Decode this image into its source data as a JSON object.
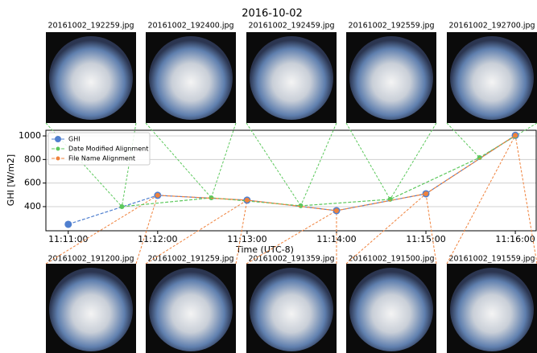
{
  "chart_data": {
    "type": "line",
    "title": "2016-10-02",
    "x_label": "Time (UTC-8)",
    "y_label": "GHI [W/m2]",
    "xlim": [
      "11:10:45",
      "11:16:14"
    ],
    "xticks": [
      "11:11:00",
      "11:12:00",
      "11:13:00",
      "11:14:00",
      "11:15:00",
      "11:16:00"
    ],
    "ylim": [
      195,
      1048
    ],
    "yticks": [
      400,
      600,
      800,
      1000
    ],
    "grid": true,
    "legend": "upper left",
    "series": [
      {
        "name": "GHI",
        "color": "#4f7fcf",
        "x": [
          "11:11:00",
          "11:12:00",
          "11:13:00",
          "11:14:00",
          "11:15:00",
          "11:16:00"
        ],
        "values": [
          250,
          496,
          455,
          366,
          509,
          1005
        ]
      },
      {
        "name": "Date Modified Alignment",
        "color": "#5cc85c",
        "x": [
          "11:11:36",
          "11:12:36",
          "11:13:36",
          "11:14:36",
          "11:15:36",
          "11:16:00"
        ],
        "values": [
          400,
          475,
          407,
          462,
          816,
          1000
        ]
      },
      {
        "name": "File Name Alignment",
        "color": "#f0823c",
        "x": [
          "11:12:00",
          "11:13:00",
          "11:14:00",
          "11:15:00",
          "11:16:00"
        ],
        "values": [
          496,
          455,
          366,
          509,
          1005
        ]
      }
    ]
  },
  "images": {
    "top": [
      "20161002_192259.jpg",
      "20161002_192400.jpg",
      "20161002_192459.jpg",
      "20161002_192559.jpg",
      "20161002_192700.jpg"
    ],
    "bottom": [
      "20161002_191200.jpg",
      "20161002_191259.jpg",
      "20161002_191359.jpg",
      "20161002_191500.jpg",
      "20161002_191559.jpg"
    ]
  }
}
